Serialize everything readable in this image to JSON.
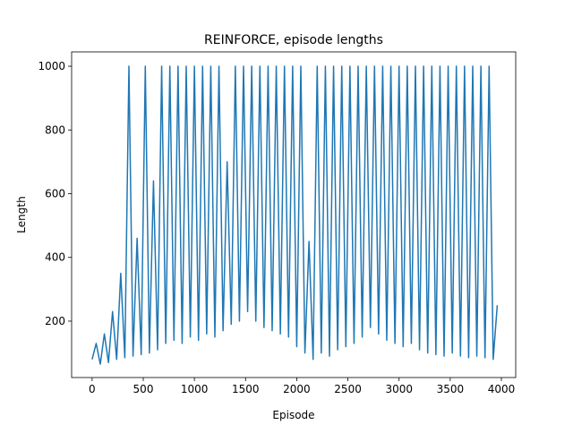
{
  "chart_data": {
    "type": "line",
    "title": "REINFORCE, episode lengths",
    "x_label": "Episode",
    "y_label": "Length",
    "color": "#1f77b4",
    "x": [
      0,
      40,
      80,
      120,
      160,
      200,
      240,
      280,
      320,
      360,
      400,
      440,
      480,
      520,
      560,
      600,
      640,
      680,
      720,
      760,
      800,
      840,
      880,
      920,
      960,
      1000,
      1040,
      1080,
      1120,
      1160,
      1200,
      1240,
      1280,
      1320,
      1360,
      1400,
      1440,
      1480,
      1520,
      1560,
      1600,
      1640,
      1680,
      1720,
      1760,
      1800,
      1840,
      1880,
      1920,
      1960,
      2000,
      2040,
      2080,
      2120,
      2160,
      2200,
      2240,
      2280,
      2320,
      2360,
      2400,
      2440,
      2480,
      2520,
      2560,
      2600,
      2640,
      2680,
      2720,
      2760,
      2800,
      2840,
      2880,
      2920,
      2960,
      3000,
      3040,
      3080,
      3120,
      3160,
      3200,
      3240,
      3280,
      3320,
      3360,
      3400,
      3440,
      3480,
      3520,
      3560,
      3600,
      3640,
      3680,
      3720,
      3760,
      3800,
      3840,
      3880,
      3920,
      3960
    ],
    "values": [
      80,
      130,
      65,
      160,
      70,
      230,
      80,
      350,
      85,
      1000,
      90,
      460,
      95,
      1000,
      100,
      640,
      110,
      1000,
      130,
      1000,
      140,
      1000,
      130,
      1000,
      150,
      1000,
      140,
      1000,
      160,
      1000,
      150,
      1000,
      170,
      700,
      190,
      1000,
      200,
      1000,
      230,
      1000,
      200,
      1000,
      180,
      1000,
      170,
      1000,
      160,
      1000,
      150,
      1000,
      120,
      1000,
      100,
      450,
      80,
      1000,
      100,
      1000,
      90,
      1000,
      110,
      1000,
      120,
      1000,
      130,
      1000,
      150,
      1000,
      180,
      1000,
      160,
      1000,
      140,
      1000,
      130,
      1000,
      120,
      1000,
      130,
      1000,
      110,
      1000,
      100,
      1000,
      95,
      1000,
      90,
      1000,
      100,
      1000,
      90,
      1000,
      85,
      1000,
      90,
      1000,
      85,
      1000,
      80,
      250
    ],
    "xlim": [
      -200,
      4140
    ],
    "ylim": [
      23,
      1045
    ],
    "xticks": [
      0,
      500,
      1000,
      1500,
      2000,
      2500,
      3000,
      3500,
      4000
    ],
    "yticks": [
      200,
      400,
      600,
      800,
      1000
    ]
  }
}
